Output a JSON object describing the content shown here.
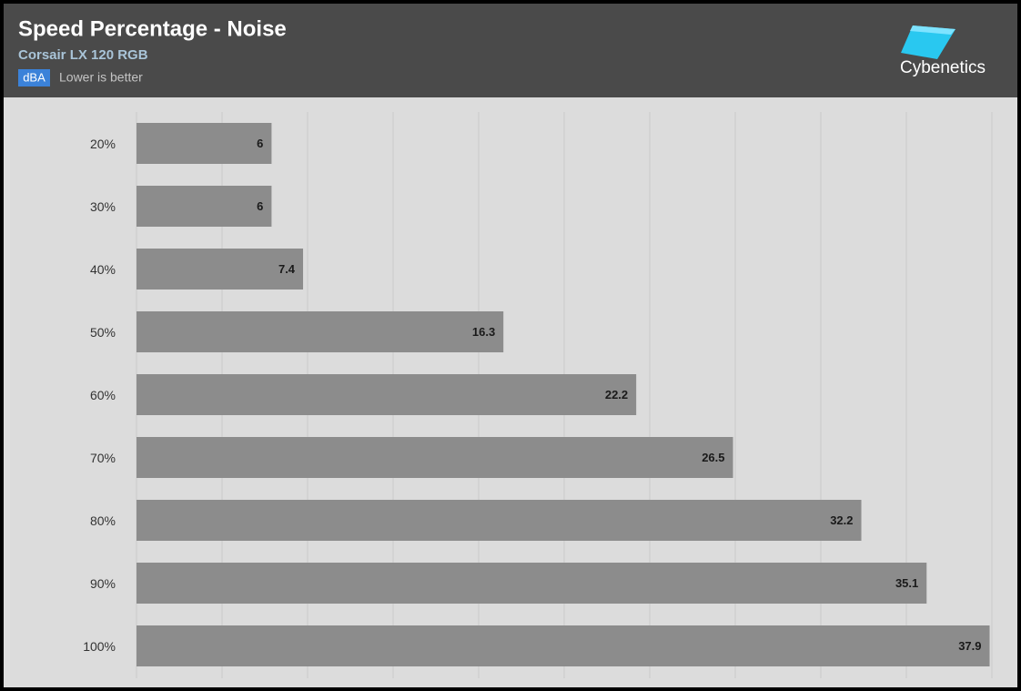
{
  "chart_data": {
    "type": "hbar",
    "title": "Speed Percentage - Noise",
    "subtitle": "Corsair LX 120 RGB",
    "unit": "dBA",
    "note": "Lower is better",
    "logo": "Cybenetics",
    "categories": [
      "20%",
      "30%",
      "40%",
      "50%",
      "60%",
      "70%",
      "80%",
      "90%",
      "100%"
    ],
    "values": [
      6,
      6,
      7.4,
      16.3,
      22.2,
      26.5,
      32.2,
      35.1,
      37.9
    ],
    "color": "#8c8c8c",
    "xlim": [
      0,
      38
    ],
    "xticks": [
      0,
      3.8,
      7.6,
      11.4,
      15.2,
      19,
      22.8,
      26.6,
      30.4,
      34.2,
      38
    ],
    "grid": true
  }
}
